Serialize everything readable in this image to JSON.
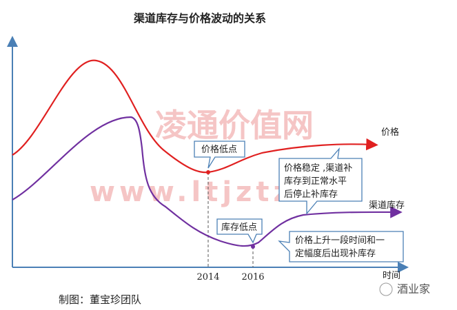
{
  "header": {
    "title": "渠道库存与价格波动的关系"
  },
  "watermark": {
    "name": "凌通价值网",
    "url": "www.ltjztz"
  },
  "curves": {
    "price": "价格",
    "inventory": "渠道库存"
  },
  "axis": {
    "x_label": "时间",
    "ticks": [
      "2014",
      "2016"
    ]
  },
  "callouts": {
    "price_low": "价格低点",
    "inventory_low": "库存低点",
    "price_stable": [
      "价格稳定 ,渠道补",
      "库存到正常水平",
      "后停止补库存"
    ],
    "price_rise": [
      "价格上升一段时间和一",
      "定幅度后出现补库存"
    ]
  },
  "footer": {
    "credit": "制图：董宝珍团队",
    "logo": "酒业家"
  }
}
